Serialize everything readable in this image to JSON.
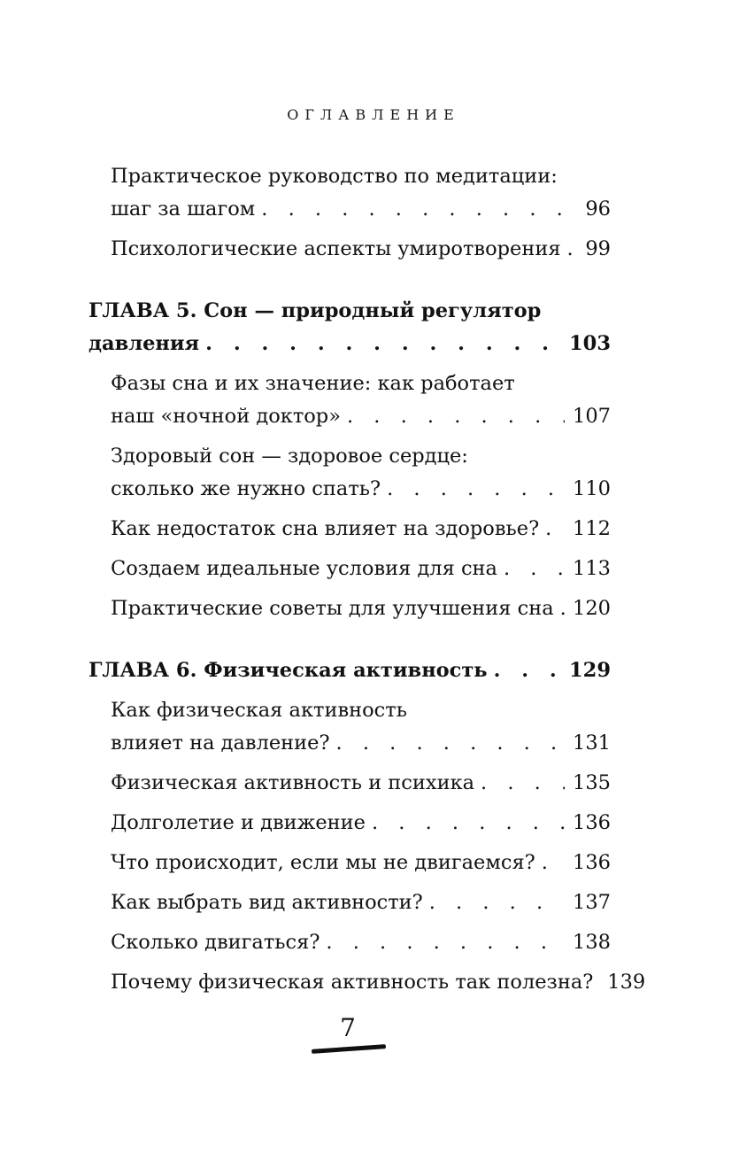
{
  "page": {
    "header": "ОГЛАВЛЕНИЕ",
    "page_number": "7"
  },
  "toc": {
    "entries": [
      {
        "type": "sub",
        "lines": [
          "Практическое руководство по медитации:",
          "шаг за шагом"
        ],
        "page": "96"
      },
      {
        "type": "sub",
        "lines": [
          "Психологические аспекты умиротворения"
        ],
        "page": "99"
      },
      {
        "type": "chapter",
        "lines": [
          "ГЛАВА 5. Сон — природный регулятор",
          "давления"
        ],
        "page": "103"
      },
      {
        "type": "sub",
        "lines": [
          "Фазы сна и их значение: как работает",
          "наш «ночной доктор»"
        ],
        "page": "107"
      },
      {
        "type": "sub",
        "lines": [
          "Здоровый сон — здоровое сердце:",
          "сколько же нужно спать?"
        ],
        "page": "110"
      },
      {
        "type": "sub",
        "lines": [
          "Как недостаток сна влияет на здоровье?"
        ],
        "page": "112"
      },
      {
        "type": "sub",
        "lines": [
          "Создаем идеальные условия для сна"
        ],
        "page": "113"
      },
      {
        "type": "sub",
        "lines": [
          "Практические советы для улучшения сна"
        ],
        "page": "120"
      },
      {
        "type": "chapter",
        "lines": [
          "ГЛАВА 6. Физическая активность"
        ],
        "page": "129"
      },
      {
        "type": "sub",
        "lines": [
          "Как физическая активность",
          "влияет на давление?"
        ],
        "page": "131"
      },
      {
        "type": "sub",
        "lines": [
          "Физическая активность и психика"
        ],
        "page": "135"
      },
      {
        "type": "sub",
        "lines": [
          "Долголетие и движение"
        ],
        "page": "136"
      },
      {
        "type": "sub",
        "lines": [
          "Что происходит, если мы не двигаемся?"
        ],
        "page": "136"
      },
      {
        "type": "sub",
        "lines": [
          "Как выбрать вид активности?"
        ],
        "page": "137"
      },
      {
        "type": "sub",
        "lines": [
          "Сколько двигаться?"
        ],
        "page": "138"
      },
      {
        "type": "sub",
        "lines": [
          "Почему физическая активность так полезна?"
        ],
        "page": "139"
      }
    ]
  }
}
